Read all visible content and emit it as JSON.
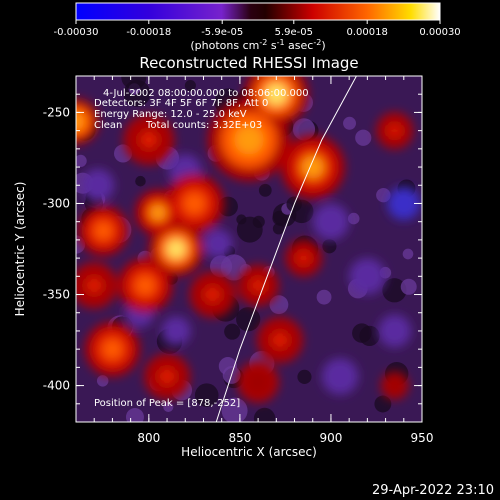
{
  "colorbar": {
    "tick_labels": [
      "-0.00030",
      "-0.00018",
      "-5.9e-05",
      "5.9e-05",
      "0.00018",
      "0.00030"
    ],
    "tick_values": [
      -0.0003,
      -0.00018,
      -5.9e-05,
      5.9e-05,
      0.00018,
      0.0003
    ],
    "range": [
      -0.0003,
      0.0003
    ],
    "units_main": "(photons cm",
    "units_exp1": "-2",
    "units_mid": " s",
    "units_exp2": "-1",
    "units_end": " asec",
    "units_exp3": "-2",
    "units_close": ")",
    "colors": [
      "#0000ff",
      "#5500cc",
      "#8a2be2",
      "#2a0000",
      "#c80000",
      "#ff6600",
      "#ffd000",
      "#ffffff"
    ]
  },
  "chart_data": {
    "type": "heatmap",
    "title": "Reconstructed RHESSI Image",
    "xlabel": "Heliocentric X (arcsec)",
    "ylabel": "Heliocentric Y (arcsec)",
    "xlim": [
      760,
      950
    ],
    "ylim": [
      -420,
      -230
    ],
    "x_ticks": [
      800,
      850,
      900,
      950
    ],
    "y_ticks": [
      -250,
      -300,
      -350,
      -400
    ],
    "annotations": {
      "time": "4-Jul-2002 08:00:00.000 to 08:06:00.000",
      "detectors": "Detectors: 3F 4F 5F 6F 7F 8F, Att 0",
      "energy": "Energy Range: 12.0 - 25.0 keV",
      "algorithm": "Clean",
      "counts": "Total counts: 3.32E+03",
      "peak": "Position of Peak = [878,-252]"
    },
    "peak": [
      878,
      -252
    ],
    "limb_curve": [
      [
        837,
        -420
      ],
      [
        850,
        -380
      ],
      [
        865,
        -340
      ],
      [
        880,
        -300
      ],
      [
        895,
        -265
      ],
      [
        914,
        -230
      ]
    ],
    "bright_regions": [
      {
        "x": 870,
        "y": -240,
        "value": 0.00024,
        "r": 14
      },
      {
        "x": 855,
        "y": -265,
        "value": 0.00022,
        "r": 18
      },
      {
        "x": 890,
        "y": -280,
        "value": 0.00018,
        "r": 14
      },
      {
        "x": 760,
        "y": -255,
        "value": 0.0002,
        "r": 10
      },
      {
        "x": 800,
        "y": -265,
        "value": 0.00012,
        "r": 11
      },
      {
        "x": 825,
        "y": -300,
        "value": 0.00016,
        "r": 13
      },
      {
        "x": 805,
        "y": -305,
        "value": 0.00018,
        "r": 10
      },
      {
        "x": 775,
        "y": -315,
        "value": 0.00014,
        "r": 11
      },
      {
        "x": 815,
        "y": -325,
        "value": 0.00024,
        "r": 12
      },
      {
        "x": 770,
        "y": -345,
        "value": 0.00012,
        "r": 10
      },
      {
        "x": 798,
        "y": -345,
        "value": 0.00016,
        "r": 12
      },
      {
        "x": 835,
        "y": -350,
        "value": 0.0001,
        "r": 10
      },
      {
        "x": 780,
        "y": -380,
        "value": 0.00014,
        "r": 12
      },
      {
        "x": 810,
        "y": -395,
        "value": 0.00012,
        "r": 10
      },
      {
        "x": 860,
        "y": -345,
        "value": 0.0001,
        "r": 9
      },
      {
        "x": 872,
        "y": -375,
        "value": 0.0001,
        "r": 10
      },
      {
        "x": 885,
        "y": -330,
        "value": 9e-05,
        "r": 8
      },
      {
        "x": 860,
        "y": -398,
        "value": 8e-05,
        "r": 9
      },
      {
        "x": 935,
        "y": -260,
        "value": 0.00012,
        "r": 8
      },
      {
        "x": 935,
        "y": -400,
        "value": 7e-05,
        "r": 6
      }
    ],
    "dark_regions": [
      {
        "x": 772,
        "y": -290,
        "value": -0.00012,
        "r": 9
      },
      {
        "x": 820,
        "y": -282,
        "value": -0.00014,
        "r": 9
      },
      {
        "x": 795,
        "y": -360,
        "value": -0.00014,
        "r": 8
      },
      {
        "x": 838,
        "y": -322,
        "value": -0.00013,
        "r": 8
      },
      {
        "x": 815,
        "y": -370,
        "value": -0.00012,
        "r": 8
      },
      {
        "x": 900,
        "y": -310,
        "value": -0.00012,
        "r": 10
      },
      {
        "x": 920,
        "y": -340,
        "value": -0.00014,
        "r": 10
      },
      {
        "x": 940,
        "y": -300,
        "value": -0.00016,
        "r": 9
      },
      {
        "x": 905,
        "y": -395,
        "value": -0.00012,
        "r": 10
      },
      {
        "x": 935,
        "y": -370,
        "value": -0.00014,
        "r": 9
      }
    ]
  },
  "footer": {
    "timestamp": "29-Apr-2022 23:10"
  }
}
